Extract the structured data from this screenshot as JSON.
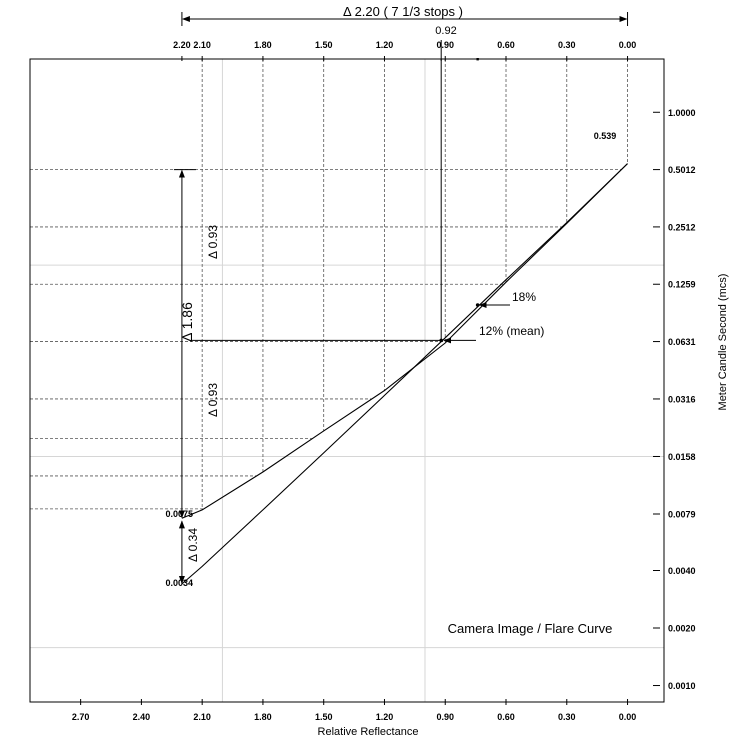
{
  "chart_data": {
    "type": "line",
    "title": "Camera Image / Flare Curve",
    "xlabel": "Relative Reflectance",
    "ylabel": "Meter Candle Second (mcs)",
    "x_reversed": true,
    "y_scale": "log",
    "xlim": [
      2.95,
      -0.18
    ],
    "ylim": [
      0.00082,
      1.9
    ],
    "bottom_x_ticks": [
      "2.70",
      "2.40",
      "2.10",
      "1.80",
      "1.50",
      "1.20",
      "0.90",
      "0.60",
      "0.30",
      "0.00"
    ],
    "top_x_ticks": [
      "2.20",
      "2.10",
      "1.80",
      "1.50",
      "1.20",
      "0.90",
      "0.60",
      "0.30",
      "0.00"
    ],
    "y_ticks": [
      "1.0000",
      "0.5012",
      "0.2512",
      "0.1259",
      "0.0631",
      "0.0316",
      "0.0158",
      "0.0079",
      "0.0040",
      "0.0020",
      "0.0010"
    ],
    "series": [
      {
        "x": [
          0.0,
          0.3,
          0.6,
          0.9,
          1.2,
          1.5,
          1.8,
          2.1,
          2.2
        ],
        "y": [
          0.539,
          0.262,
          0.129,
          0.062,
          0.035,
          0.0215,
          0.0131,
          0.0083,
          0.0075
        ]
      },
      {
        "x": [
          0.0,
          0.3,
          0.6,
          0.9,
          1.2,
          1.5,
          1.8,
          2.1,
          2.2
        ],
        "y": [
          0.539,
          0.265,
          0.133,
          0.066,
          0.033,
          0.0165,
          0.0083,
          0.0042,
          0.0034
        ]
      }
    ],
    "dashed_levels": [
      0.5012,
      0.2512,
      0.1259,
      0.0631,
      0.0316,
      0.0196,
      0.0125,
      0.0084
    ],
    "dashed_verticals": [
      2.1,
      1.8,
      1.5,
      1.2,
      0.9,
      0.6,
      0.3,
      0.0
    ],
    "light_verticals": [
      2.0,
      1.0
    ],
    "light_levels": [
      0.1584,
      0.0158,
      0.00158
    ],
    "mean_point": {
      "x": 0.92,
      "y": 0.064,
      "label": "12% (mean)"
    },
    "gray_point": {
      "x": 0.74,
      "y": 0.098,
      "label": "18%"
    },
    "top_marker": "0.92",
    "annotations": {
      "top_range": "Δ 2.20 ( 7 1/3 stops )",
      "delta_total": "Δ 1.86",
      "delta_upper": "Δ 0.93",
      "delta_lower": "Δ 0.93",
      "delta_flare": "Δ 0.34",
      "max_value": "0.539",
      "upper_min": "0.0075",
      "lower_min": "0.0034"
    }
  }
}
